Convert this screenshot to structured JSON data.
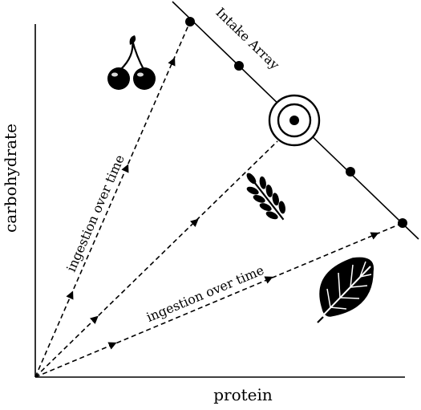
{
  "diagram": {
    "axes": {
      "x_label": "protein",
      "y_label": "carbohydrate"
    },
    "intake_array_label": "Intake Array",
    "trajectory_labels": {
      "upper": "ingestion over time",
      "lower": "ingestion over time"
    },
    "icons": [
      "cherries-icon",
      "wheat-icon",
      "leaf-icon",
      "target-icon"
    ],
    "colors": {
      "ink": "#000000",
      "background": "#ffffff"
    }
  }
}
